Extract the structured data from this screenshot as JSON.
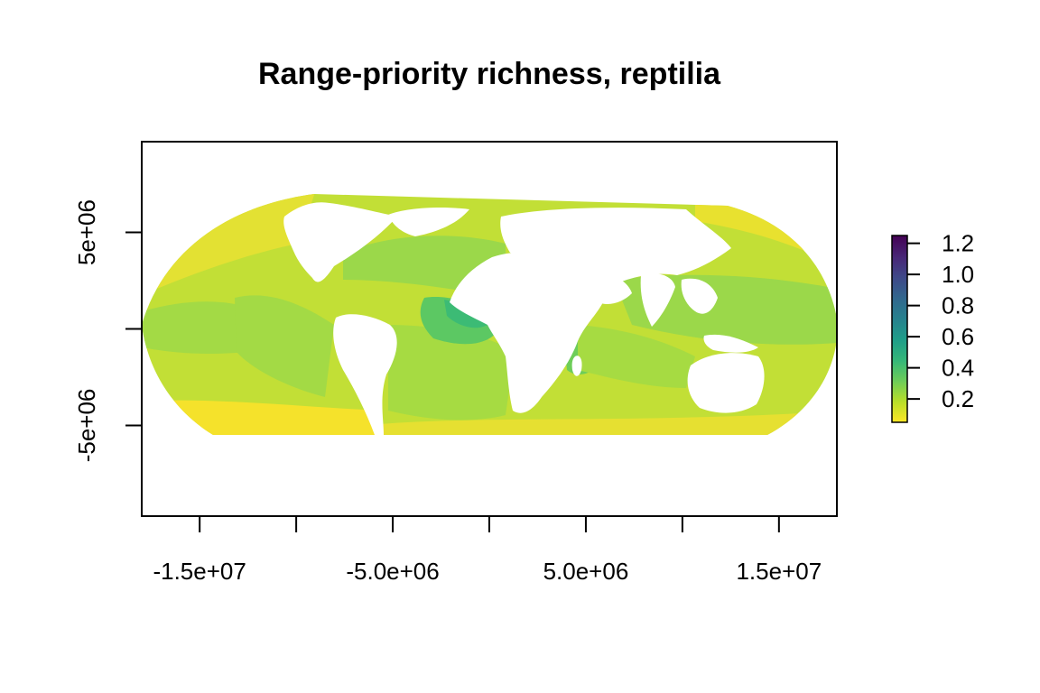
{
  "title": "Range-priority richness, reptilia",
  "map": {
    "projection": "Robinson",
    "x_ticks": [
      -15000000,
      -10000000,
      -5000000,
      0,
      5000000,
      10000000,
      15000000
    ],
    "x_tick_labels": [
      "-1.5e+07",
      "",
      "-5.0e+06",
      "",
      "5.0e+06",
      "",
      "1.5e+07"
    ],
    "y_ticks": [
      5000000,
      0,
      -5000000
    ],
    "y_tick_labels": [
      "5e+06",
      "",
      "-5e+06"
    ],
    "xlim": [
      -18000000,
      18000000
    ],
    "ylim": [
      -9700000,
      9700000
    ]
  },
  "legend": {
    "ticks": [
      0.2,
      0.4,
      0.6,
      0.8,
      1.0,
      1.2
    ],
    "labels": [
      "0.2",
      "0.4",
      "0.6",
      "0.8",
      "1.0",
      "1.2"
    ],
    "range": [
      0.05,
      1.25
    ],
    "colors": [
      "#FDE725",
      "#B8DE29",
      "#6DCD59",
      "#35B779",
      "#1F9E89",
      "#26828E",
      "#31688E",
      "#3E4A89",
      "#482878",
      "#440154"
    ]
  },
  "colors": {
    "ocean_base": "#C2DF36",
    "low": "#F2E22E",
    "mid": "#9DD94A",
    "high": "#5CC863",
    "peak": "#3CBB75",
    "land": "#ffffff"
  }
}
